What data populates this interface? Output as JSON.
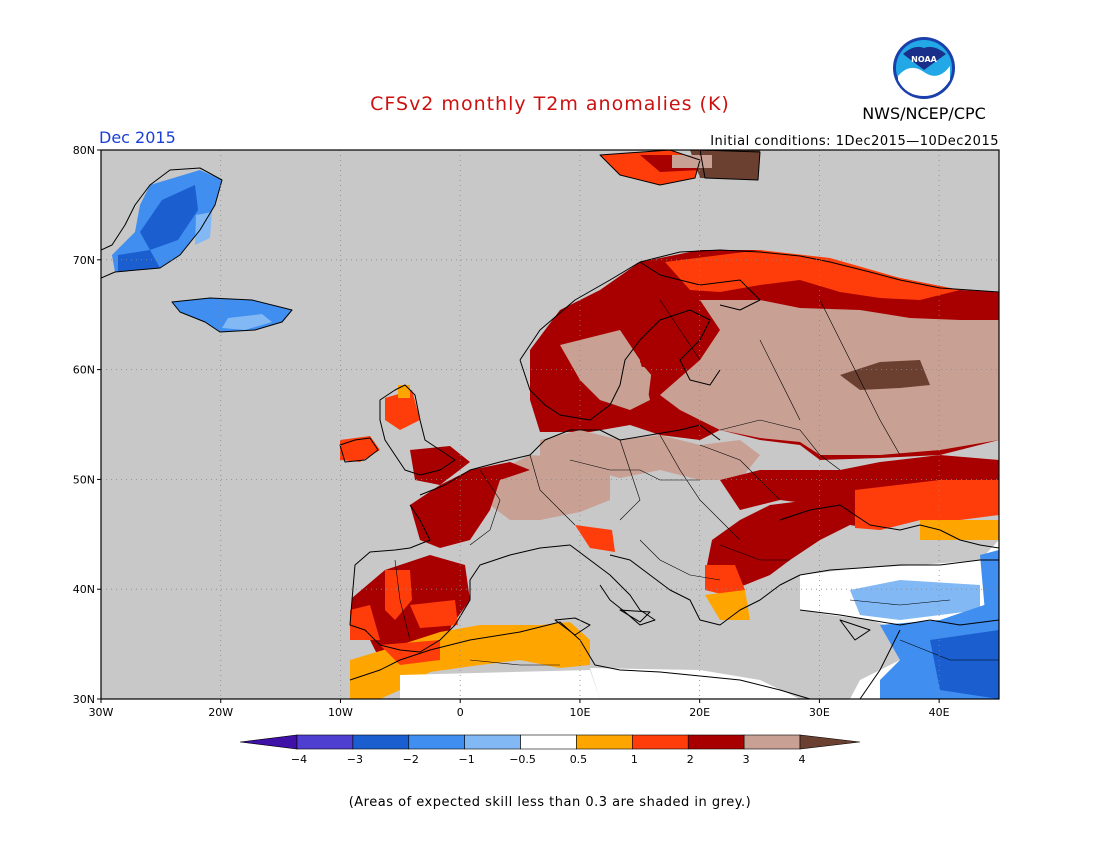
{
  "title": "CFSv2 monthly T2m anomalies (K)",
  "agency": "NWS/NCEP/CPC",
  "logo_text": "NOAA",
  "month": "Dec 2015",
  "initial_conditions": "Initial conditions: 1Dec2015—10Dec2015",
  "note": "(Areas of expected skill less than 0.3 are shaded in grey.)",
  "map": {
    "lon_range": [
      -30,
      45
    ],
    "lat_range": [
      30,
      80
    ],
    "lon_ticks": [
      "30W",
      "20W",
      "10W",
      "0",
      "10E",
      "20E",
      "30E",
      "40E"
    ],
    "lat_ticks": [
      "30N",
      "40N",
      "50N",
      "60N",
      "70N",
      "80N"
    ],
    "grid": true,
    "background_color": "#c8c8c8"
  },
  "legend": {
    "labels": [
      "−4",
      "−3",
      "−2",
      "−1",
      "−0.5",
      "0.5",
      "1",
      "2",
      "3",
      "4"
    ],
    "colors": [
      "#3f11a8",
      "#4f3fd0",
      "#1a5ed0",
      "#3f8ef0",
      "#82b8f4",
      "#ffffff",
      "#ffa500",
      "#ff3d0a",
      "#a80000",
      "#c8a094",
      "#6b4030"
    ]
  }
}
